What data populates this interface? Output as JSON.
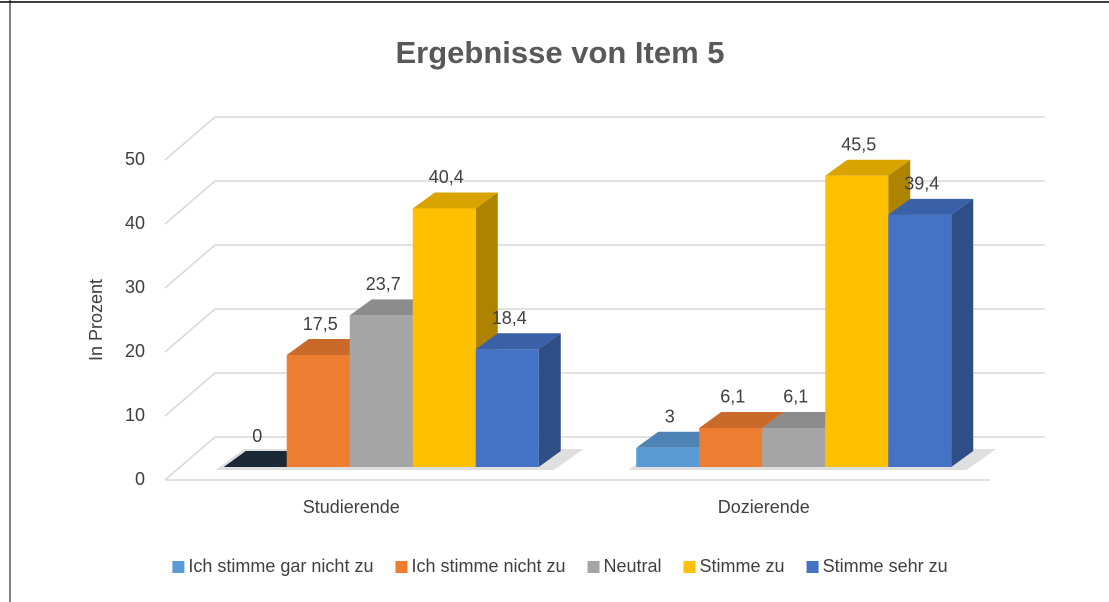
{
  "chart_data": {
    "type": "bar3d",
    "title": "Ergebnisse von Item 5",
    "y_label": "In Prozent",
    "categories": [
      "Studierende",
      "Dozierende"
    ],
    "series": [
      {
        "name": "Ich stimme gar nicht zu",
        "color": "#5b9bd5",
        "values": [
          0,
          3
        ],
        "value_labels": [
          "0",
          "3"
        ]
      },
      {
        "name": "Ich stimme nicht zu",
        "color": "#ed7d31",
        "values": [
          17.5,
          6.1
        ],
        "value_labels": [
          "17,5",
          "6,1"
        ]
      },
      {
        "name": "Neutral",
        "color": "#a5a5a5",
        "values": [
          23.7,
          6.1
        ],
        "value_labels": [
          "23,7",
          "6,1"
        ]
      },
      {
        "name": "Stimme zu",
        "color": "#ffc000",
        "values": [
          40.4,
          45.5
        ],
        "value_labels": [
          "40,4",
          "45,5"
        ]
      },
      {
        "name": "Stimme sehr zu",
        "color": "#4472c4",
        "values": [
          18.4,
          39.4
        ],
        "value_labels": [
          "18,4",
          "39,4"
        ]
      }
    ],
    "ylim": [
      0,
      50
    ],
    "yticks": [
      0,
      10,
      20,
      30,
      40,
      50
    ],
    "grid": true,
    "legend": "bottom"
  }
}
